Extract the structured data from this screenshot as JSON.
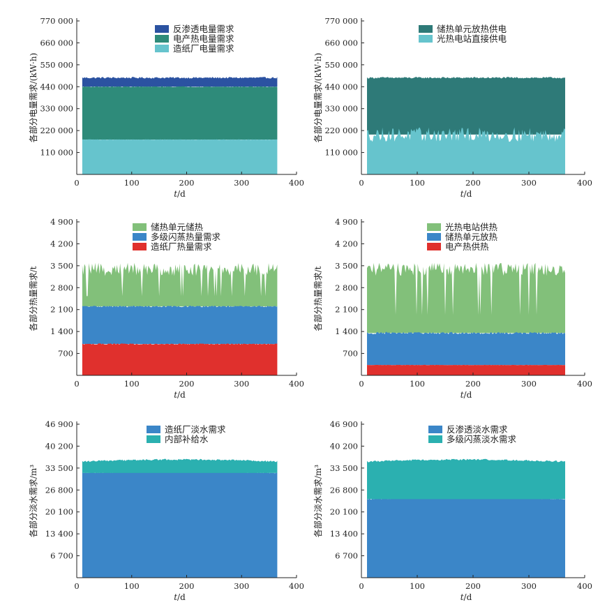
{
  "chart_data": [
    {
      "type": "area",
      "id": "electric-supply-demand",
      "ylabel": "各部分电量需求/(kW·h)",
      "xlabel_italic": "t",
      "xlabel_unit": "/d",
      "xlim": [
        0,
        400
      ],
      "xticks": [
        "0",
        "100",
        "200",
        "300",
        "400"
      ],
      "ylim": [
        0,
        770000
      ],
      "yticks": [
        110000,
        220000,
        330000,
        440000,
        550000,
        660000,
        770000
      ],
      "ytick_labels": [
        "110 000",
        "220 000",
        "330 000",
        "440 000",
        "550 000",
        "660 000",
        "770 000"
      ],
      "x": [
        10,
        365
      ],
      "series": [
        {
          "name": "反渗透电量需求",
          "color": "#2b52a1",
          "band": [
            440000,
            485000
          ],
          "noise": 7000
        },
        {
          "name": "电产热电量需求",
          "color": "#2e8b7a",
          "band": [
            175000,
            440000
          ],
          "noise": 4000
        },
        {
          "name": "造纸厂电量需求",
          "color": "#66c4cd",
          "band": [
            0,
            175000
          ],
          "noise": 1500
        }
      ]
    },
    {
      "type": "area",
      "id": "electric-supply-source",
      "ylabel": "各部分电量需求/(kW·h)",
      "xlabel_italic": "t",
      "xlabel_unit": "/d",
      "xlim": [
        0,
        400
      ],
      "xticks": [
        "0",
        "100",
        "200",
        "300",
        "400"
      ],
      "ylim": [
        0,
        770000
      ],
      "yticks": [
        110000,
        220000,
        330000,
        440000,
        550000,
        660000,
        770000
      ],
      "ytick_labels": [
        "110 000",
        "220 000",
        "330 000",
        "440 000",
        "550 000",
        "660 000",
        "770 000"
      ],
      "x": [
        10,
        365
      ],
      "series": [
        {
          "name": "储热单元放热供电",
          "color": "#2e7a78",
          "band": [
            200000,
            485000
          ],
          "noise": 7000
        },
        {
          "name": "光热电站直接供电",
          "color": "#66c4cd",
          "band": [
            0,
            200000
          ],
          "noise": 60000
        }
      ]
    },
    {
      "type": "area",
      "id": "heat-demand",
      "ylabel": "各部分热量需求/t",
      "xlabel_italic": "t",
      "xlabel_unit": "/d",
      "xlim": [
        0,
        400
      ],
      "xticks": [
        "0",
        "100",
        "200",
        "300",
        "400"
      ],
      "ylim": [
        0,
        4900
      ],
      "yticks": [
        700,
        1400,
        2100,
        2800,
        3500,
        4200,
        4900
      ],
      "ytick_labels": [
        "700",
        "1 400",
        "2 100",
        "2 800",
        "3 500",
        "4 200",
        "4 900"
      ],
      "x": [
        10,
        365
      ],
      "series": [
        {
          "name": "储热单元储热",
          "color": "#82c07a",
          "band": [
            2200,
            3300
          ],
          "noise": 350
        },
        {
          "name": "多级闪蒸热量需求",
          "color": "#3b86c8",
          "band": [
            1000,
            2200
          ],
          "noise": 40
        },
        {
          "name": "造纸厂热量需求",
          "color": "#e0302d",
          "band": [
            0,
            1000
          ],
          "noise": 30
        }
      ]
    },
    {
      "type": "area",
      "id": "heat-supply",
      "ylabel": "各部分热量需求/t",
      "xlabel_italic": "t",
      "xlabel_unit": "/d",
      "xlim": [
        0,
        400
      ],
      "xticks": [
        "0",
        "100",
        "200",
        "300",
        "400"
      ],
      "ylim": [
        0,
        4900
      ],
      "yticks": [
        700,
        1400,
        2100,
        2800,
        3500,
        4200,
        4900
      ],
      "ytick_labels": [
        "700",
        "1 400",
        "2 100",
        "2 800",
        "3 500",
        "4 200",
        "4 900"
      ],
      "x": [
        10,
        365
      ],
      "series": [
        {
          "name": "光热电站供热",
          "color": "#82c07a",
          "band": [
            1350,
            3300
          ],
          "noise": 350
        },
        {
          "name": "储热单元放热",
          "color": "#3b86c8",
          "band": [
            330,
            1350
          ],
          "noise": 60
        },
        {
          "name": "电产热供热",
          "color": "#e0302d",
          "band": [
            0,
            330
          ],
          "noise": 10
        }
      ]
    },
    {
      "type": "area",
      "id": "water-demand",
      "ylabel": "各部分淡水需求/m³",
      "xlabel_italic": "t",
      "xlabel_unit": "/d",
      "xlim": [
        0,
        400
      ],
      "xticks": [
        "0",
        "100",
        "200",
        "300",
        "400"
      ],
      "ylim": [
        0,
        46900
      ],
      "yticks": [
        6700,
        13400,
        20100,
        26800,
        33500,
        40200,
        46900
      ],
      "ytick_labels": [
        "6 700",
        "13 400",
        "20 100",
        "26 800",
        "33 500",
        "40 200",
        "46 900"
      ],
      "x": [
        10,
        365
      ],
      "series": [
        {
          "name": "造纸厂淡水需求",
          "color": "#3b86c8",
          "band": [
            0,
            32000
          ],
          "noise": 200
        },
        {
          "name": "内部补给水",
          "color": "#2bb0b0",
          "band": [
            32000,
            35500
          ],
          "noise": 400
        }
      ]
    },
    {
      "type": "area",
      "id": "water-supply",
      "ylabel": "各部分淡水需求/m³",
      "xlabel_italic": "t",
      "xlabel_unit": "/d",
      "xlim": [
        0,
        400
      ],
      "xticks": [
        "0",
        "100",
        "200",
        "300",
        "400"
      ],
      "ylim": [
        0,
        46900
      ],
      "yticks": [
        6700,
        13400,
        20100,
        26800,
        33500,
        40200,
        46900
      ],
      "ytick_labels": [
        "6 700",
        "13 400",
        "20 100",
        "26 800",
        "33 500",
        "40 200",
        "46 900"
      ],
      "x": [
        10,
        365
      ],
      "series": [
        {
          "name": "反渗透淡水需求",
          "color": "#3b86c8",
          "band": [
            0,
            24000
          ],
          "noise": 400
        },
        {
          "name": "多级闪蒸淡水需求",
          "color": "#2bb0b0",
          "band": [
            24000,
            35500
          ],
          "noise": 400
        }
      ]
    }
  ]
}
